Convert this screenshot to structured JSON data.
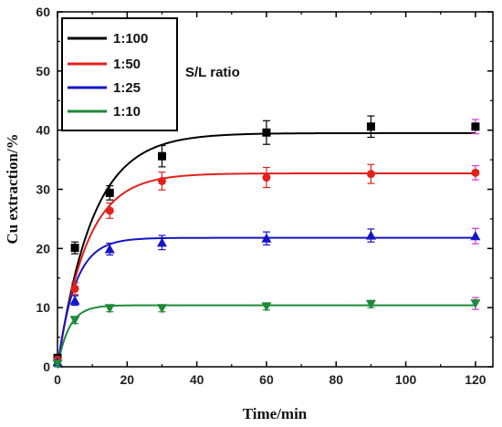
{
  "chart_data": {
    "type": "scatter",
    "xlabel": "Time/min",
    "ylabel": "Cu extraction/%",
    "xlim": [
      0,
      125
    ],
    "ylim": [
      0,
      60
    ],
    "xticks": [
      0,
      20,
      40,
      60,
      80,
      100,
      120
    ],
    "yticks": [
      0,
      10,
      20,
      30,
      40,
      50,
      60
    ],
    "annotation": "S/L ratio",
    "legend_placement": "top-left",
    "grid": false,
    "series": [
      {
        "name": "1:100",
        "color": "#000000",
        "marker": "square",
        "x": [
          0,
          5,
          15,
          30,
          60,
          90,
          120
        ],
        "y": [
          1.5,
          20.1,
          29.4,
          35.6,
          39.6,
          40.6,
          40.6
        ],
        "err": [
          0.5,
          1.0,
          1.2,
          1.8,
          2.0,
          1.8,
          1.2
        ],
        "fit": {
          "a": 39.5,
          "k": 0.1
        }
      },
      {
        "name": "1:50",
        "color": "#e3201b",
        "marker": "circle",
        "x": [
          0,
          5,
          15,
          30,
          60,
          90,
          120
        ],
        "y": [
          1.2,
          13.2,
          26.4,
          31.4,
          32.0,
          32.6,
          32.8
        ],
        "err": [
          0.5,
          1.0,
          1.3,
          1.5,
          1.7,
          1.6,
          1.2
        ],
        "fit": {
          "a": 32.7,
          "k": 0.12
        }
      },
      {
        "name": "1:25",
        "color": "#1515c8",
        "marker": "triangle-up",
        "x": [
          0,
          5,
          15,
          30,
          60,
          90,
          120
        ],
        "y": [
          0.8,
          11.2,
          19.9,
          21.0,
          21.7,
          22.2,
          22.1
        ],
        "err": [
          0.5,
          0.8,
          1.0,
          1.2,
          1.1,
          1.1,
          1.3
        ],
        "fit": {
          "a": 21.8,
          "k": 0.2
        }
      },
      {
        "name": "1:10",
        "color": "#1e8a3a",
        "marker": "triangle-down",
        "x": [
          0,
          5,
          15,
          30,
          60,
          90,
          120
        ],
        "y": [
          0.5,
          7.9,
          9.9,
          9.9,
          10.2,
          10.6,
          10.7
        ],
        "err": [
          0.5,
          0.6,
          0.6,
          0.6,
          0.6,
          0.6,
          1.0
        ],
        "fit": {
          "a": 10.4,
          "k": 0.3
        }
      }
    ]
  }
}
